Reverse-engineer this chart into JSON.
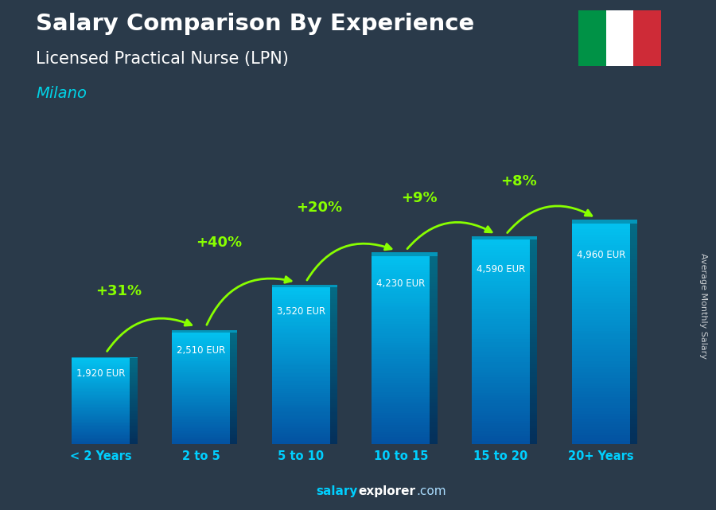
{
  "title_line1": "Salary Comparison By Experience",
  "title_line2": "Licensed Practical Nurse (LPN)",
  "city": "Milano",
  "categories": [
    "< 2 Years",
    "2 to 5",
    "5 to 10",
    "10 to 15",
    "15 to 20",
    "20+ Years"
  ],
  "values": [
    1920,
    2510,
    3520,
    4230,
    4590,
    4960
  ],
  "value_labels": [
    "1,920 EUR",
    "2,510 EUR",
    "3,520 EUR",
    "4,230 EUR",
    "4,590 EUR",
    "4,960 EUR"
  ],
  "pct_changes": [
    null,
    "+31%",
    "+40%",
    "+20%",
    "+9%",
    "+8%"
  ],
  "bar_color_top": "#00cfff",
  "bar_color_bottom": "#0055aa",
  "bar_side_dark": "#004488",
  "background_color": "#2a3a4a",
  "title_color": "#ffffff",
  "subtitle_color": "#ffffff",
  "city_color": "#00d4e8",
  "pct_color": "#88ff00",
  "value_color": "#ffffff",
  "xlabel_color": "#00cfff",
  "footer_salary_color": "#00cfff",
  "footer_explorer_color": "#ffffff",
  "footer_com_color": "#aaddff",
  "ylabel_text": "Average Monthly Salary",
  "ylim": [
    0,
    6200
  ],
  "flag_colors": [
    "#009246",
    "#ffffff",
    "#ce2b37"
  ],
  "footer_text_salary": "salary",
  "footer_text_explorer": "explorer",
  "footer_text_com": ".com"
}
